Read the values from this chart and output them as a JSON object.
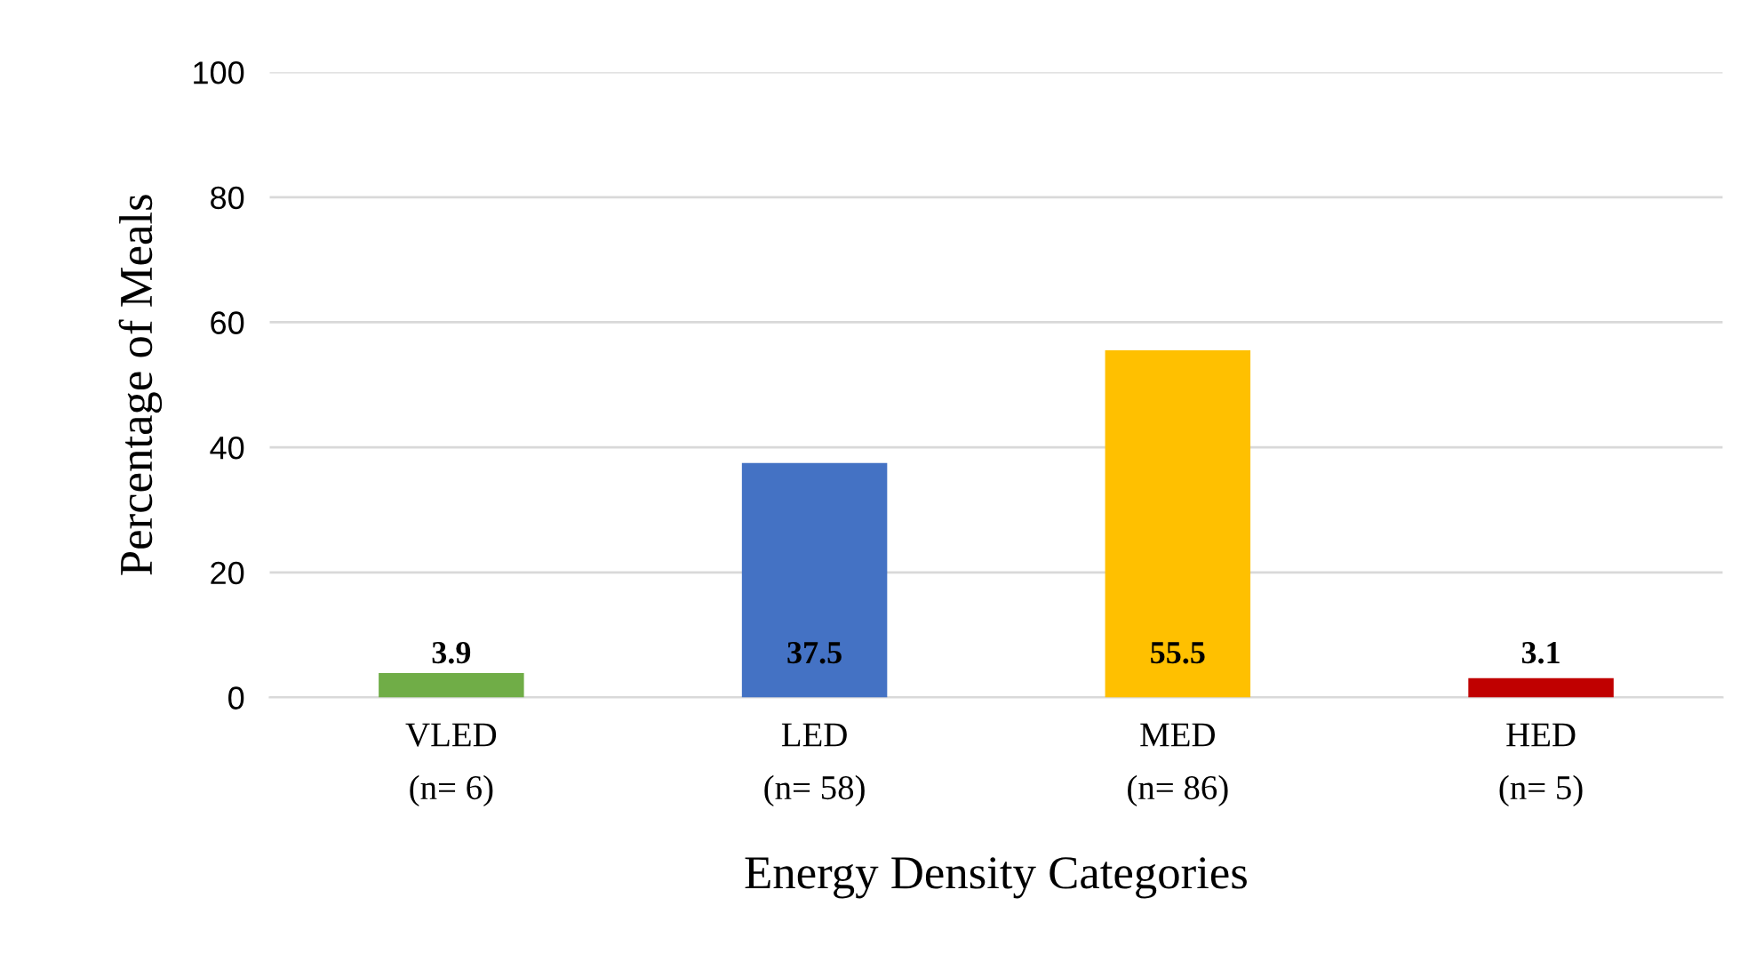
{
  "chart_data": {
    "type": "bar",
    "xlabel": "Energy Density Categories",
    "ylabel": "Percentage of Meals",
    "categories": [
      "VLED\n(n= 6)",
      "LED\n(n= 58)",
      "MED\n(n= 86)",
      "HED\n(n= 5)"
    ],
    "values": [
      3.9,
      37.5,
      55.5,
      3.1
    ],
    "colors": [
      "#70ad47",
      "#4472c4",
      "#ffc000",
      "#c00000"
    ],
    "ylim": [
      0,
      100
    ],
    "yticks": [
      0,
      20,
      40,
      60,
      80,
      100
    ],
    "grid": "y",
    "data_labels": true
  }
}
